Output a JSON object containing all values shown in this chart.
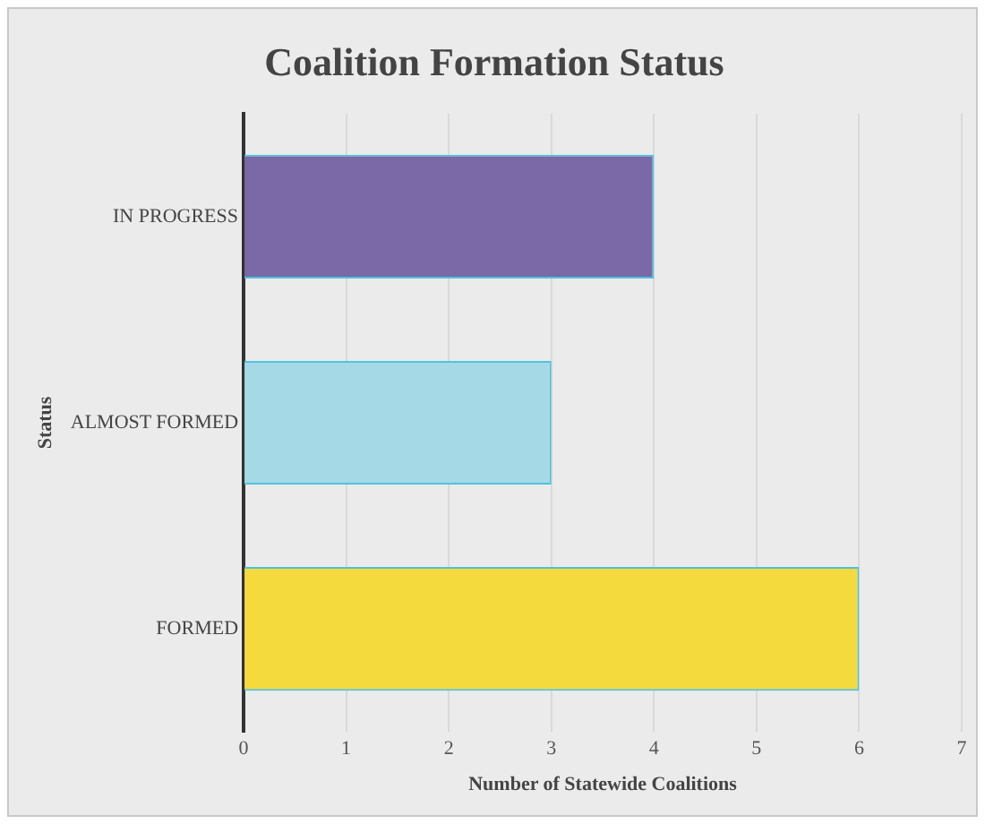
{
  "chart_data": {
    "type": "bar",
    "orientation": "horizontal",
    "title": "Coalition Formation Status",
    "xlabel": "Number of Statewide Coalitions",
    "ylabel": "Status",
    "categories": [
      "IN PROGRESS",
      "ALMOST FORMED",
      "FORMED"
    ],
    "values": [
      4,
      3,
      6
    ],
    "colors": [
      "#7b68a6",
      "#a5d9e6",
      "#f4da3c"
    ],
    "xlim": [
      0,
      7
    ],
    "xticks": [
      0,
      1,
      2,
      3,
      4,
      5,
      6,
      7
    ],
    "grid": "x"
  }
}
